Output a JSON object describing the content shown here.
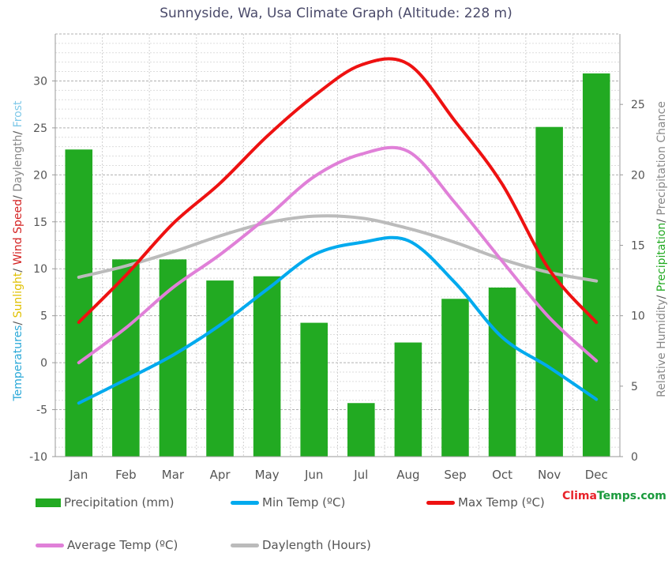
{
  "chart_data": {
    "type": "bar",
    "title": "Sunnyside, Wa, Usa Climate Graph (Altitude: 228 m)",
    "categories": [
      "Jan",
      "Feb",
      "Mar",
      "Apr",
      "May",
      "Jun",
      "Jul",
      "Aug",
      "Sep",
      "Oct",
      "Nov",
      "Dec"
    ],
    "y_left": {
      "range": [
        -10,
        35
      ],
      "ticks": [
        -10,
        -5,
        0,
        5,
        10,
        15,
        20,
        25,
        30
      ],
      "label_parts": [
        {
          "text": "Temperatures",
          "color": "#2aa8d8"
        },
        {
          "text": "/ ",
          "color": "#555555"
        },
        {
          "text": "Sunlight",
          "color": "#e0c000"
        },
        {
          "text": "/ ",
          "color": "#555555"
        },
        {
          "text": "Wind Speed",
          "color": "#d42020"
        },
        {
          "text": "/ ",
          "color": "#555555"
        },
        {
          "text": "Daylength",
          "color": "#888888"
        },
        {
          "text": "/ ",
          "color": "#555555"
        },
        {
          "text": "Frost",
          "color": "#7ec8e8"
        }
      ]
    },
    "y_right": {
      "range": [
        0,
        30
      ],
      "ticks": [
        0,
        5,
        10,
        15,
        20,
        25
      ],
      "label_parts": [
        {
          "text": "Relative Humidity",
          "color": "#888888"
        },
        {
          "text": "/ ",
          "color": "#555555"
        },
        {
          "text": "Precipitation",
          "color": "#22aa22"
        },
        {
          "text": "/ ",
          "color": "#555555"
        },
        {
          "text": "Precipitation Chance",
          "color": "#888888"
        }
      ]
    },
    "grid": true,
    "legend_position": "bottom",
    "series": [
      {
        "name": "Precipitation (mm)",
        "type": "bar",
        "axis": "right",
        "color": "#22aa22",
        "values": [
          21.8,
          14.0,
          14.0,
          12.5,
          12.8,
          9.5,
          3.8,
          8.1,
          11.2,
          12.0,
          23.4,
          27.2
        ]
      },
      {
        "name": "Min Temp (ºC)",
        "type": "line",
        "axis": "left",
        "color": "#00aaee",
        "values": [
          -4.3,
          -1.8,
          0.8,
          4.0,
          7.8,
          11.5,
          12.8,
          13.0,
          8.5,
          2.7,
          -0.5,
          -3.9
        ]
      },
      {
        "name": "Max Temp (ºC)",
        "type": "line",
        "axis": "left",
        "color": "#ee1111",
        "values": [
          4.3,
          9.3,
          14.8,
          19.1,
          24.1,
          28.4,
          31.7,
          31.8,
          25.7,
          19.0,
          9.9,
          4.3
        ]
      },
      {
        "name": "Average Temp (ºC)",
        "type": "line",
        "axis": "left",
        "color": "#e080d8",
        "values": [
          0.0,
          3.7,
          8.0,
          11.5,
          15.5,
          19.8,
          22.2,
          22.5,
          17.0,
          10.8,
          4.8,
          0.2
        ]
      },
      {
        "name": "Daylength (Hours)",
        "type": "line",
        "axis": "left",
        "color": "#bbbbbb",
        "values": [
          9.1,
          10.3,
          11.8,
          13.5,
          14.9,
          15.6,
          15.4,
          14.3,
          12.8,
          11.0,
          9.6,
          8.7
        ]
      }
    ]
  },
  "brand": {
    "part1": "Clima",
    "part2": "Temps",
    "part3": ".com"
  }
}
